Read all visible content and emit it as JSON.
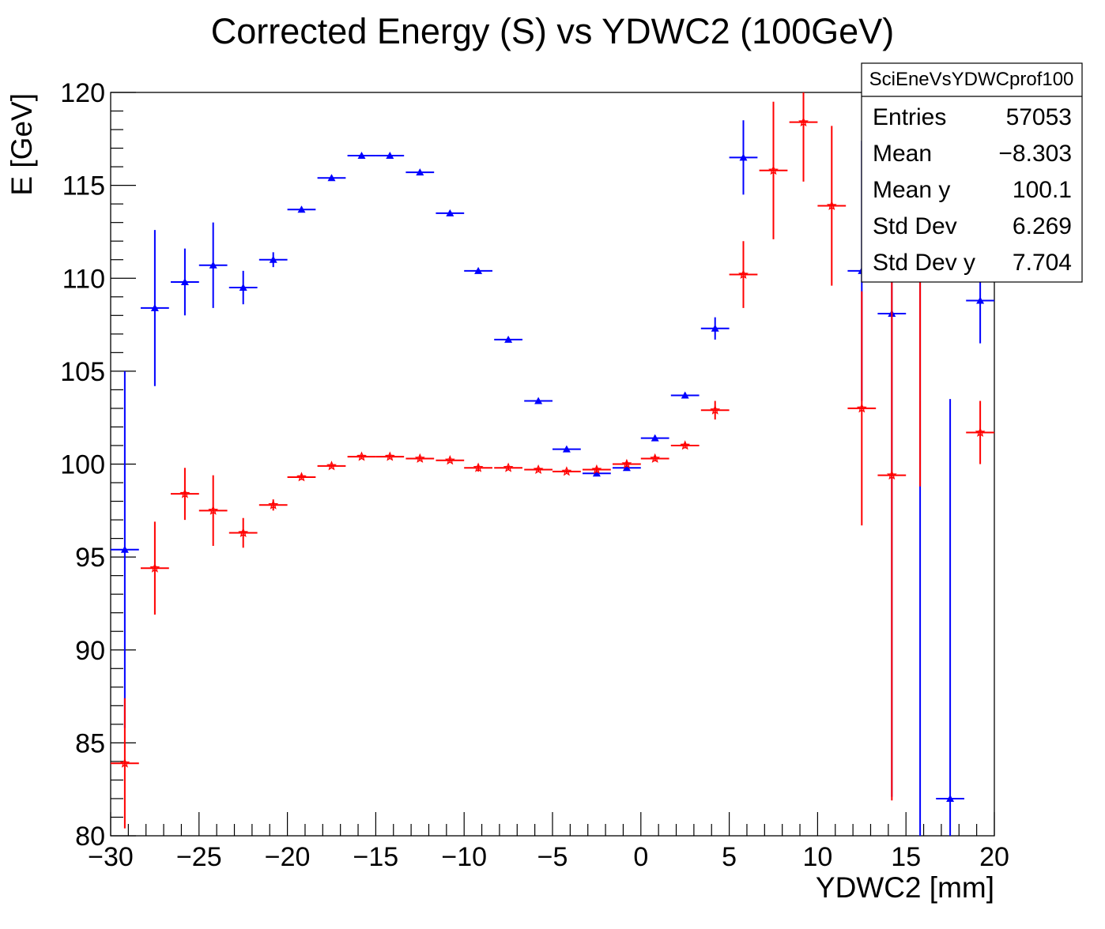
{
  "chart_data": {
    "type": "scatter",
    "title": "Corrected Energy (S) vs YDWC2 (100GeV)",
    "xlabel": "YDWC2 [mm]",
    "ylabel": "E [GeV]",
    "xlim": [
      -30,
      20
    ],
    "ylim": [
      80,
      120
    ],
    "x_ticks": [
      -30,
      -25,
      -20,
      -15,
      -10,
      -5,
      0,
      5,
      10,
      15,
      20
    ],
    "x_tick_labels": [
      "−30",
      "−25",
      "−20",
      "−15",
      "−10",
      "−5",
      "0",
      "5",
      "10",
      "15",
      "20"
    ],
    "y_ticks": [
      80,
      85,
      90,
      95,
      100,
      105,
      110,
      115,
      120
    ],
    "y_tick_labels": [
      "80",
      "85",
      "90",
      "95",
      "100",
      "105",
      "110",
      "115",
      "120"
    ],
    "grid": false,
    "bin_half_width": 0.8,
    "series": [
      {
        "color": "#0000ff",
        "marker": "triangle",
        "points": [
          {
            "x": -29.2,
            "y": 95.4,
            "yerr": 9.6
          },
          {
            "x": -27.5,
            "y": 108.4,
            "yerr": 4.2
          },
          {
            "x": -25.8,
            "y": 109.8,
            "yerr": 1.8
          },
          {
            "x": -24.2,
            "y": 110.7,
            "yerr": 2.3
          },
          {
            "x": -22.5,
            "y": 109.5,
            "yerr": 0.9
          },
          {
            "x": -20.8,
            "y": 111.0,
            "yerr": 0.4
          },
          {
            "x": -19.2,
            "y": 113.7,
            "yerr": 0.15
          },
          {
            "x": -17.5,
            "y": 115.4,
            "yerr": 0.15
          },
          {
            "x": -15.8,
            "y": 116.6,
            "yerr": 0.1
          },
          {
            "x": -14.2,
            "y": 116.6,
            "yerr": 0.1
          },
          {
            "x": -12.5,
            "y": 115.7,
            "yerr": 0.1
          },
          {
            "x": -10.8,
            "y": 113.5,
            "yerr": 0.1
          },
          {
            "x": -9.2,
            "y": 110.4,
            "yerr": 0.1
          },
          {
            "x": -7.5,
            "y": 106.7,
            "yerr": 0.1
          },
          {
            "x": -5.8,
            "y": 103.4,
            "yerr": 0.1
          },
          {
            "x": -4.2,
            "y": 100.8,
            "yerr": 0.1
          },
          {
            "x": -2.5,
            "y": 99.5,
            "yerr": 0.15
          },
          {
            "x": -0.8,
            "y": 99.8,
            "yerr": 0.15
          },
          {
            "x": 0.8,
            "y": 101.4,
            "yerr": 0.15
          },
          {
            "x": 2.5,
            "y": 103.7,
            "yerr": 0.15
          },
          {
            "x": 4.2,
            "y": 107.3,
            "yerr": 0.6
          },
          {
            "x": 5.8,
            "y": 116.5,
            "yerr": 2.0
          },
          {
            "x": 12.5,
            "y": 110.4,
            "yerr": 7.0
          },
          {
            "x": 14.2,
            "y": 108.1,
            "yerr": 26.0
          },
          {
            "x": 15.8,
            "y": 119.7,
            "yerr": 40.0
          },
          {
            "x": 17.5,
            "y": 82.0,
            "yerr": 21.5
          },
          {
            "x": 19.2,
            "y": 108.8,
            "yerr": 2.3
          }
        ]
      },
      {
        "color": "#ff0000",
        "marker": "star",
        "points": [
          {
            "x": -29.2,
            "y": 83.9,
            "yerr": 3.5
          },
          {
            "x": -27.5,
            "y": 94.4,
            "yerr": 2.5
          },
          {
            "x": -25.8,
            "y": 98.4,
            "yerr": 1.4
          },
          {
            "x": -24.2,
            "y": 97.5,
            "yerr": 1.9
          },
          {
            "x": -22.5,
            "y": 96.3,
            "yerr": 0.8
          },
          {
            "x": -20.8,
            "y": 97.8,
            "yerr": 0.3
          },
          {
            "x": -19.2,
            "y": 99.3,
            "yerr": 0.15
          },
          {
            "x": -17.5,
            "y": 99.9,
            "yerr": 0.1
          },
          {
            "x": -15.8,
            "y": 100.4,
            "yerr": 0.1
          },
          {
            "x": -14.2,
            "y": 100.4,
            "yerr": 0.1
          },
          {
            "x": -12.5,
            "y": 100.3,
            "yerr": 0.1
          },
          {
            "x": -10.8,
            "y": 100.2,
            "yerr": 0.1
          },
          {
            "x": -9.2,
            "y": 99.8,
            "yerr": 0.2
          },
          {
            "x": -7.5,
            "y": 99.8,
            "yerr": 0.1
          },
          {
            "x": -5.8,
            "y": 99.7,
            "yerr": 0.1
          },
          {
            "x": -4.2,
            "y": 99.6,
            "yerr": 0.1
          },
          {
            "x": -2.5,
            "y": 99.7,
            "yerr": 0.15
          },
          {
            "x": -0.8,
            "y": 100.0,
            "yerr": 0.15
          },
          {
            "x": 0.8,
            "y": 100.3,
            "yerr": 0.15
          },
          {
            "x": 2.5,
            "y": 101.0,
            "yerr": 0.15
          },
          {
            "x": 4.2,
            "y": 102.9,
            "yerr": 0.5
          },
          {
            "x": 5.8,
            "y": 110.2,
            "yerr": 1.8
          },
          {
            "x": 7.5,
            "y": 115.8,
            "yerr": 3.7
          },
          {
            "x": 9.2,
            "y": 118.4,
            "yerr": 3.2
          },
          {
            "x": 10.8,
            "y": 113.9,
            "yerr": 4.3
          },
          {
            "x": 12.5,
            "y": 103.0,
            "yerr": 6.3
          },
          {
            "x": 14.2,
            "y": 99.4,
            "yerr": 17.5
          },
          {
            "x": 15.8,
            "y": 114.0,
            "yerr": 15.2
          },
          {
            "x": 19.2,
            "y": 101.7,
            "yerr": 1.7
          }
        ]
      }
    ]
  },
  "stats_box": {
    "name": "SciEneVsYDWCprof100",
    "rows": [
      {
        "label": "Entries",
        "value": "57053"
      },
      {
        "label": "Mean",
        "value": "−8.303"
      },
      {
        "label": "Mean y",
        "value": "100.1"
      },
      {
        "label": "Std Dev",
        "value": "6.269"
      },
      {
        "label": "Std Dev y",
        "value": "7.704"
      }
    ]
  }
}
